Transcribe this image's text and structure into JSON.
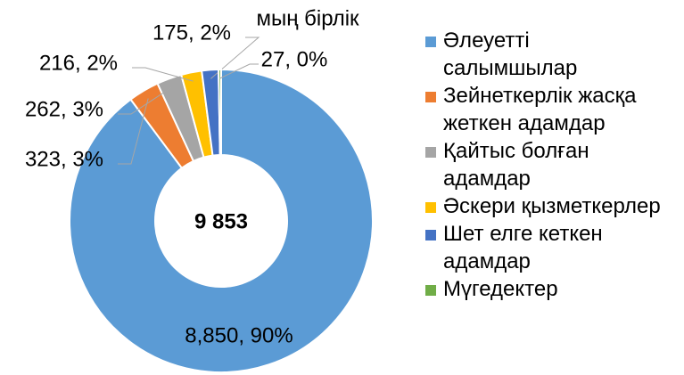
{
  "chart_data": {
    "type": "donut",
    "unit": "мың бірлік",
    "center_label": "9 853",
    "categories": [
      "Әлеуетті салымшылар",
      "Зейнеткерлік жасқа жеткен адамдар",
      "Қайтыс болған адамдар",
      "Әскери қызметкерлер",
      "Шет елге кеткен адамдар",
      "Мүгедектер"
    ],
    "values": [
      8850,
      323,
      262,
      216,
      175,
      27
    ],
    "value_labels": [
      "8,850, 90%",
      "323, 3%",
      "262, 3%",
      "216, 2%",
      "175, 2%",
      "27, 0%"
    ],
    "colors": [
      "#5b9bd5",
      "#ed7d31",
      "#a5a5a5",
      "#ffc000",
      "#4472c4",
      "#70ad47"
    ],
    "legend": "right"
  }
}
